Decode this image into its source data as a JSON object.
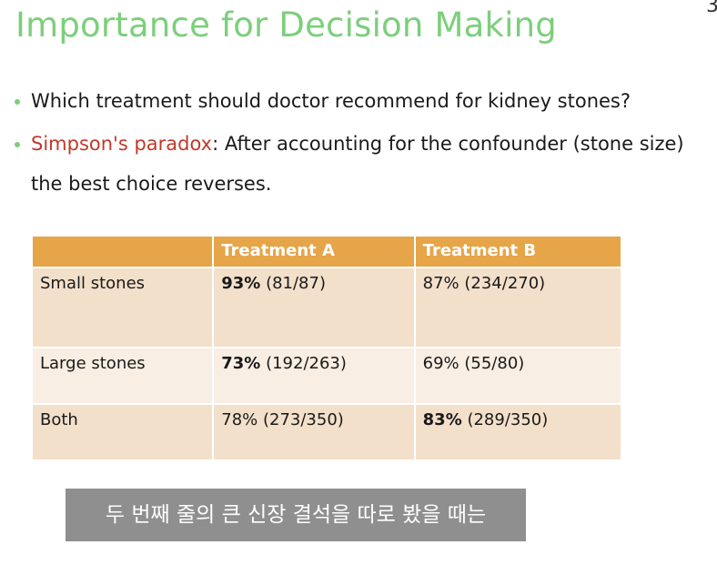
{
  "slide": {
    "title": "Importance for Decision Making",
    "corner_glyph": "3"
  },
  "bullets": [
    {
      "text": "Which treatment should doctor recommend for kidney stones?"
    },
    {
      "highlight": "Simpson's paradox",
      "text": ": After accounting for the confounder (stone size)"
    }
  ],
  "bullet_continuation": "the best choice reverses.",
  "table": {
    "headers": [
      "",
      "Treatment A",
      "Treatment B"
    ],
    "rows": [
      {
        "label": "Small stones",
        "a_pct": "93%",
        "a_frac": " (81/87)",
        "b_pct": "87%",
        "b_frac": " (234/270)",
        "a_bold": true,
        "b_bold": false
      },
      {
        "label": "Large stones",
        "a_pct": "73%",
        "a_frac": " (192/263)",
        "b_pct": "69%",
        "b_frac": " (55/80)",
        "a_bold": true,
        "b_bold": false
      },
      {
        "label": "Both",
        "a_pct": "78%",
        "a_frac": " (273/350)",
        "b_pct": "83%",
        "b_frac": " (289/350)",
        "a_bold": false,
        "b_bold": true
      }
    ]
  },
  "caption": "두 번째 줄의 큰 신장 결석을 따로 봤을 때는",
  "colors": {
    "title": "#7ccf7b",
    "accent": "#c0392b",
    "header_bg": "#e6a548",
    "row_dark": "#f3e0cb",
    "row_light": "#f8eee3",
    "caption_bg": "#8f8f8f"
  }
}
